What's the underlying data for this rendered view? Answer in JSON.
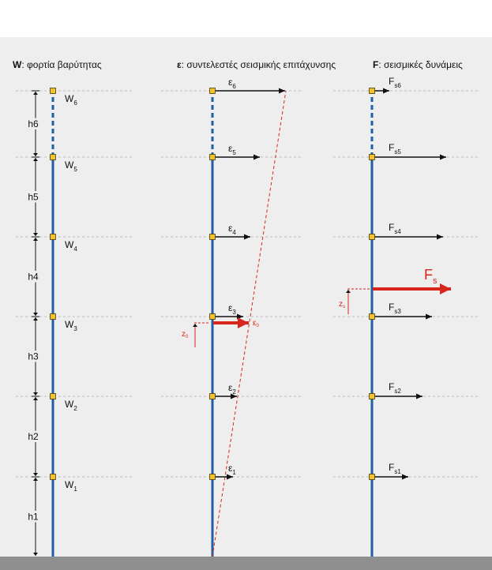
{
  "headers": {
    "w": {
      "bold": "W",
      "rest": ": φορτία βαρύτητας"
    },
    "eps": {
      "bold": "ε",
      "rest": ": συντελεστές σεισμικής επιτάχυνσης"
    },
    "f": {
      "bold": "F",
      "rest": ": σεισμικές δυνάμεις"
    }
  },
  "floors": [
    {
      "w_base": "W",
      "w_sub": "1",
      "eps_base": "ε",
      "eps_sub": "1",
      "fs_base": "F",
      "fs_sub": "s1",
      "h": "h1"
    },
    {
      "w_base": "W",
      "w_sub": "2",
      "eps_base": "ε",
      "eps_sub": "2",
      "fs_base": "F",
      "fs_sub": "s2",
      "h": "h2"
    },
    {
      "w_base": "W",
      "w_sub": "3",
      "eps_base": "ε",
      "eps_sub": "3",
      "fs_base": "F",
      "fs_sub": "s3",
      "h": "h3"
    },
    {
      "w_base": "W",
      "w_sub": "4",
      "eps_base": "ε",
      "eps_sub": "4",
      "fs_base": "F",
      "fs_sub": "s4",
      "h": "h4"
    },
    {
      "w_base": "W",
      "w_sub": "5",
      "eps_base": "ε",
      "eps_sub": "5",
      "fs_base": "F",
      "fs_sub": "s5",
      "h": "h5"
    },
    {
      "w_base": "W",
      "w_sub": "6",
      "eps_base": "ε",
      "eps_sub": "6",
      "fs_base": "F",
      "fs_sub": "s6",
      "h": "h6"
    }
  ],
  "resultants": {
    "eps0_base": "ε",
    "eps0_sub": "0",
    "z0_base": "z",
    "z0_sub": "0",
    "fs_base": "F",
    "fs_sub": "s",
    "zs_base": "z",
    "zs_sub": "s"
  },
  "colors": {
    "column": "#1f5fa8",
    "node_fill": "#f2c230",
    "node_stroke": "#4a3a00",
    "arrow": "#111111",
    "resultant": "#d9261c",
    "gridline": "#bdbdbd",
    "panel": "#eeeeee",
    "ground": "#8f8f8f"
  },
  "icons": {
    "node": "yellow-square-node",
    "arrow": "arrow-right"
  }
}
